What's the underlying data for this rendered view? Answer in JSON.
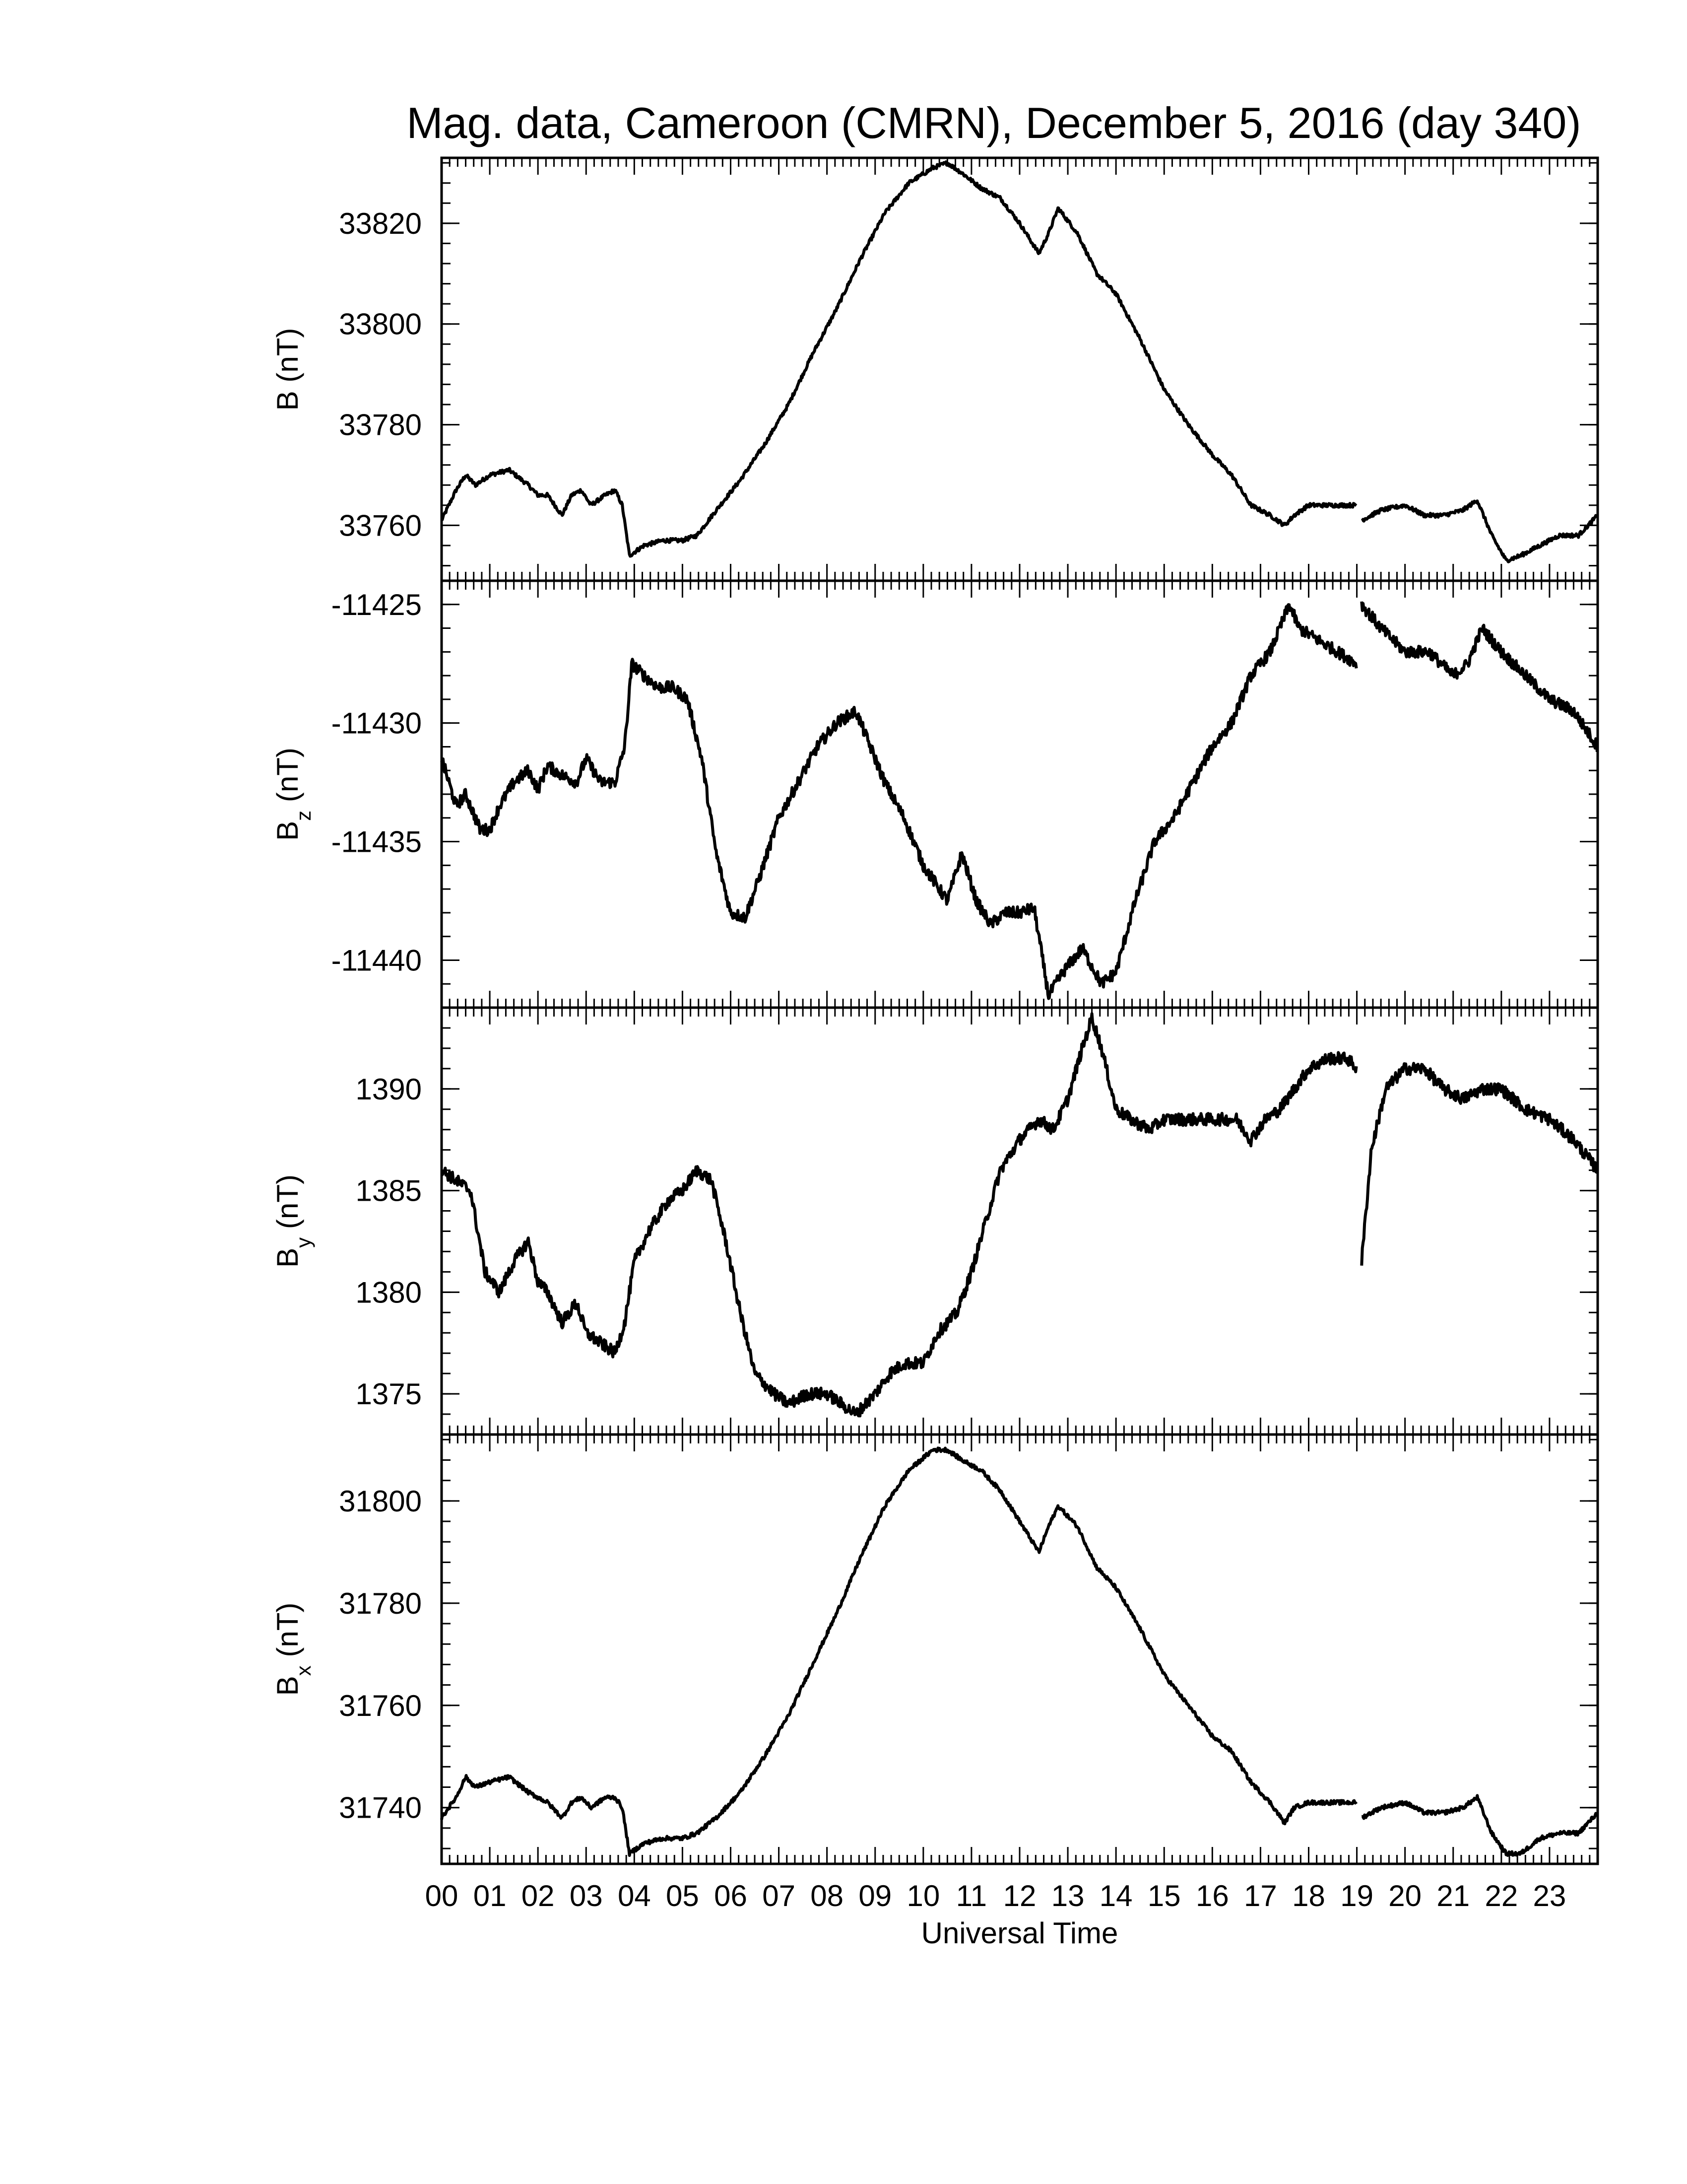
{
  "chart_data": {
    "type": "line",
    "title": "Mag. data, Cameroon (CMRN), December 5, 2016 (day 340)",
    "xlabel": "Universal Time",
    "xlim": [
      0,
      24
    ],
    "x_tick_labels": [
      "00",
      "01",
      "02",
      "03",
      "04",
      "05",
      "06",
      "07",
      "08",
      "09",
      "10",
      "11",
      "12",
      "13",
      "14",
      "15",
      "16",
      "17",
      "18",
      "19",
      "20",
      "21",
      "22",
      "23"
    ],
    "data_gap_hours": [
      19.0,
      19.1
    ],
    "panels": [
      {
        "id": "B",
        "ylabel": "B (nT)",
        "ylabel_main": "B",
        "ylabel_sub": "",
        "ylabel_unit": "(nT)",
        "ylim": [
          33749,
          33833
        ],
        "yticks": [
          33760,
          33780,
          33800,
          33820
        ],
        "noise": 0.4,
        "x": [
          0,
          0.3,
          0.5,
          0.7,
          1.0,
          1.4,
          1.8,
          2.0,
          2.2,
          2.5,
          2.7,
          2.9,
          3.1,
          3.4,
          3.6,
          3.75,
          3.9,
          4.2,
          4.6,
          5.0,
          5.3,
          5.7,
          6.2,
          6.7,
          7.2,
          7.7,
          8.2,
          8.7,
          9.2,
          9.7,
          10.2,
          10.5,
          10.8,
          11.2,
          11.6,
          12.0,
          12.4,
          12.6,
          12.8,
          13.2,
          13.6,
          14.0,
          14.5,
          15.0,
          15.5,
          16.0,
          16.4,
          16.8,
          17.2,
          17.5,
          17.7,
          18.0,
          18.4,
          19.0,
          19.1,
          19.5,
          20.0,
          20.4,
          20.8,
          21.2,
          21.5,
          21.8,
          22.1,
          22.4,
          22.8,
          23.2,
          23.6,
          24.0
        ],
        "y": [
          33761,
          33767,
          33770,
          33768,
          33770,
          33771,
          33768,
          33766,
          33766,
          33762,
          33766,
          33767,
          33764,
          33766,
          33767,
          33764,
          33754,
          33756,
          33757,
          33757,
          33758,
          33763,
          33769,
          33776,
          33784,
          33794,
          33803,
          33813,
          33822,
          33828,
          33831,
          33832,
          33830,
          33827,
          33825,
          33820,
          33814,
          33818,
          33823,
          33818,
          33810,
          33806,
          33797,
          33787,
          33780,
          33774,
          33770,
          33764,
          33762,
          33760,
          33762,
          33764,
          33764,
          33764,
          33761,
          33763,
          33764,
          33762,
          33762,
          33763,
          33765,
          33758,
          33753,
          33754,
          33756,
          33758,
          33758,
          33762
        ]
      },
      {
        "id": "Bz",
        "ylabel": "Bz (nT)",
        "ylabel_main": "B",
        "ylabel_sub": "z",
        "ylabel_unit": "(nT)",
        "ylim": [
          -11442,
          -11424
        ],
        "yticks": [
          -11425,
          -11430,
          -11435,
          -11440
        ],
        "noise": 0.25,
        "x": [
          0,
          0.3,
          0.5,
          0.8,
          1.0,
          1.2,
          1.5,
          1.8,
          2.0,
          2.2,
          2.5,
          2.8,
          3.0,
          3.3,
          3.6,
          3.8,
          3.95,
          4.2,
          4.5,
          4.8,
          5.1,
          5.4,
          5.7,
          6.0,
          6.3,
          6.6,
          7.0,
          7.4,
          7.8,
          8.2,
          8.6,
          8.9,
          9.2,
          9.6,
          10.0,
          10.5,
          10.8,
          11.1,
          11.4,
          11.7,
          12.0,
          12.3,
          12.6,
          12.9,
          13.3,
          13.7,
          14.0,
          14.4,
          14.8,
          15.2,
          15.6,
          16.0,
          16.4,
          16.8,
          17.2,
          17.6,
          17.8,
          18.2,
          18.6,
          19.0,
          19.1,
          19.5,
          20.0,
          20.5,
          21.0,
          21.3,
          21.6,
          22.0,
          22.5,
          23.0,
          23.5,
          24.0
        ],
        "y": [
          -11431.5,
          -11433.5,
          -11433.0,
          -11434.5,
          -11434.5,
          -11433.5,
          -11432.5,
          -11432.0,
          -11432.8,
          -11431.8,
          -11432.2,
          -11432.5,
          -11431.5,
          -11432.5,
          -11432.5,
          -11431.0,
          -11427.5,
          -11428.0,
          -11428.5,
          -11428.5,
          -11429.0,
          -11431.5,
          -11435.5,
          -11438.0,
          -11438.2,
          -11436.5,
          -11434.0,
          -11432.5,
          -11431.0,
          -11430.0,
          -11429.5,
          -11431.0,
          -11432.5,
          -11434.0,
          -11436.0,
          -11437.5,
          -11435.5,
          -11437.5,
          -11438.5,
          -11438.0,
          -11438.0,
          -11437.8,
          -11441.5,
          -11440.5,
          -11439.5,
          -11441.0,
          -11440.5,
          -11437.5,
          -11435.0,
          -11434.0,
          -11432.5,
          -11431.0,
          -11430.0,
          -11428.0,
          -11427.0,
          -11425.0,
          -11426.0,
          -11426.5,
          -11427.0,
          -11427.5,
          -11425.0,
          -11426.0,
          -11427.0,
          -11427.0,
          -11428.0,
          -11427.5,
          -11426.0,
          -11427.0,
          -11428.0,
          -11429.0,
          -11429.5,
          -11431.0
        ]
      },
      {
        "id": "By",
        "ylabel": "By (nT)",
        "ylabel_main": "B",
        "ylabel_sub": "y",
        "ylabel_unit": "(nT)",
        "ylim": [
          1373,
          1394
        ],
        "yticks": [
          1375,
          1380,
          1385,
          1390
        ],
        "noise": 0.3,
        "x": [
          0,
          0.3,
          0.6,
          0.9,
          1.2,
          1.5,
          1.8,
          2.0,
          2.2,
          2.5,
          2.8,
          3.0,
          3.3,
          3.6,
          3.8,
          4.0,
          4.3,
          4.7,
          5.0,
          5.3,
          5.6,
          5.9,
          6.2,
          6.5,
          6.9,
          7.2,
          7.6,
          8.0,
          8.3,
          8.6,
          9.0,
          9.3,
          9.6,
          10.0,
          10.3,
          10.7,
          11.0,
          11.3,
          11.6,
          12.0,
          12.4,
          12.7,
          13.0,
          13.3,
          13.5,
          13.7,
          14.0,
          14.3,
          14.7,
          15.0,
          15.4,
          15.8,
          16.2,
          16.5,
          16.8,
          17.1,
          17.4,
          17.7,
          18.0,
          18.4,
          18.8,
          19.0,
          19.1,
          19.3,
          19.6,
          20.0,
          20.4,
          20.8,
          21.2,
          21.6,
          22.0,
          22.5,
          23.0,
          23.5,
          24.0
        ],
        "y": [
          1386,
          1385.5,
          1385,
          1381,
          1380,
          1381.5,
          1382.5,
          1380.5,
          1380,
          1378.5,
          1379.5,
          1378,
          1377.5,
          1377,
          1378.5,
          1381.5,
          1383,
          1384.5,
          1385,
          1386,
          1385.5,
          1382.5,
          1379,
          1376,
          1375,
          1374.5,
          1375,
          1375,
          1374.5,
          1374,
          1375,
          1376,
          1376.5,
          1376.5,
          1378,
          1379,
          1381,
          1383.5,
          1386,
          1387.5,
          1388.5,
          1388,
          1389.5,
          1392,
          1393.5,
          1392,
          1389,
          1388.5,
          1388,
          1388.5,
          1388.5,
          1388.5,
          1388.5,
          1388.5,
          1387.5,
          1388.5,
          1389,
          1390,
          1391,
          1391.5,
          1391.5,
          1391,
          1381.5,
          1387,
          1390,
          1391,
          1391,
          1390,
          1389.5,
          1390,
          1390,
          1389,
          1388.5,
          1387.5,
          1386
        ]
      },
      {
        "id": "Bx",
        "ylabel": "Bx (nT)",
        "ylabel_main": "B",
        "ylabel_sub": "x",
        "ylabel_unit": "(nT)",
        "ylim": [
          31729,
          31813
        ],
        "yticks": [
          31740,
          31760,
          31780,
          31800
        ],
        "noise": 0.4,
        "x": [
          0,
          0.3,
          0.5,
          0.7,
          1.0,
          1.4,
          1.8,
          2.0,
          2.2,
          2.5,
          2.7,
          2.9,
          3.1,
          3.4,
          3.6,
          3.75,
          3.9,
          4.2,
          4.6,
          5.0,
          5.3,
          5.7,
          6.2,
          6.7,
          7.2,
          7.7,
          8.2,
          8.7,
          9.2,
          9.7,
          10.2,
          10.5,
          10.8,
          11.2,
          11.6,
          12.0,
          12.4,
          12.6,
          12.8,
          13.2,
          13.6,
          14.0,
          14.5,
          15.0,
          15.5,
          16.0,
          16.4,
          16.8,
          17.2,
          17.5,
          17.7,
          18.0,
          18.4,
          19.0,
          19.1,
          19.5,
          20.0,
          20.4,
          20.8,
          21.2,
          21.5,
          21.8,
          22.1,
          22.4,
          22.8,
          23.2,
          23.6,
          24.0
        ],
        "y": [
          31738,
          31742,
          31746,
          31744,
          31745,
          31746,
          31743,
          31742,
          31741,
          31738,
          31741,
          31742,
          31740,
          31742,
          31742,
          31740,
          31731,
          31733,
          31734,
          31734,
          31735,
          31738,
          31743,
          31750,
          31758,
          31768,
          31778,
          31789,
          31799,
          31806,
          31810,
          31810,
          31808,
          31806,
          31802,
          31796,
          31790,
          31795,
          31799,
          31795,
          31787,
          31783,
          31775,
          31766,
          31760,
          31754,
          31751,
          31745,
          31741,
          31737,
          31740,
          31741,
          31741,
          31741,
          31738,
          31740,
          31741,
          31739,
          31739,
          31740,
          31742,
          31735,
          31731,
          31731,
          31734,
          31735,
          31735,
          31739
        ]
      }
    ]
  }
}
